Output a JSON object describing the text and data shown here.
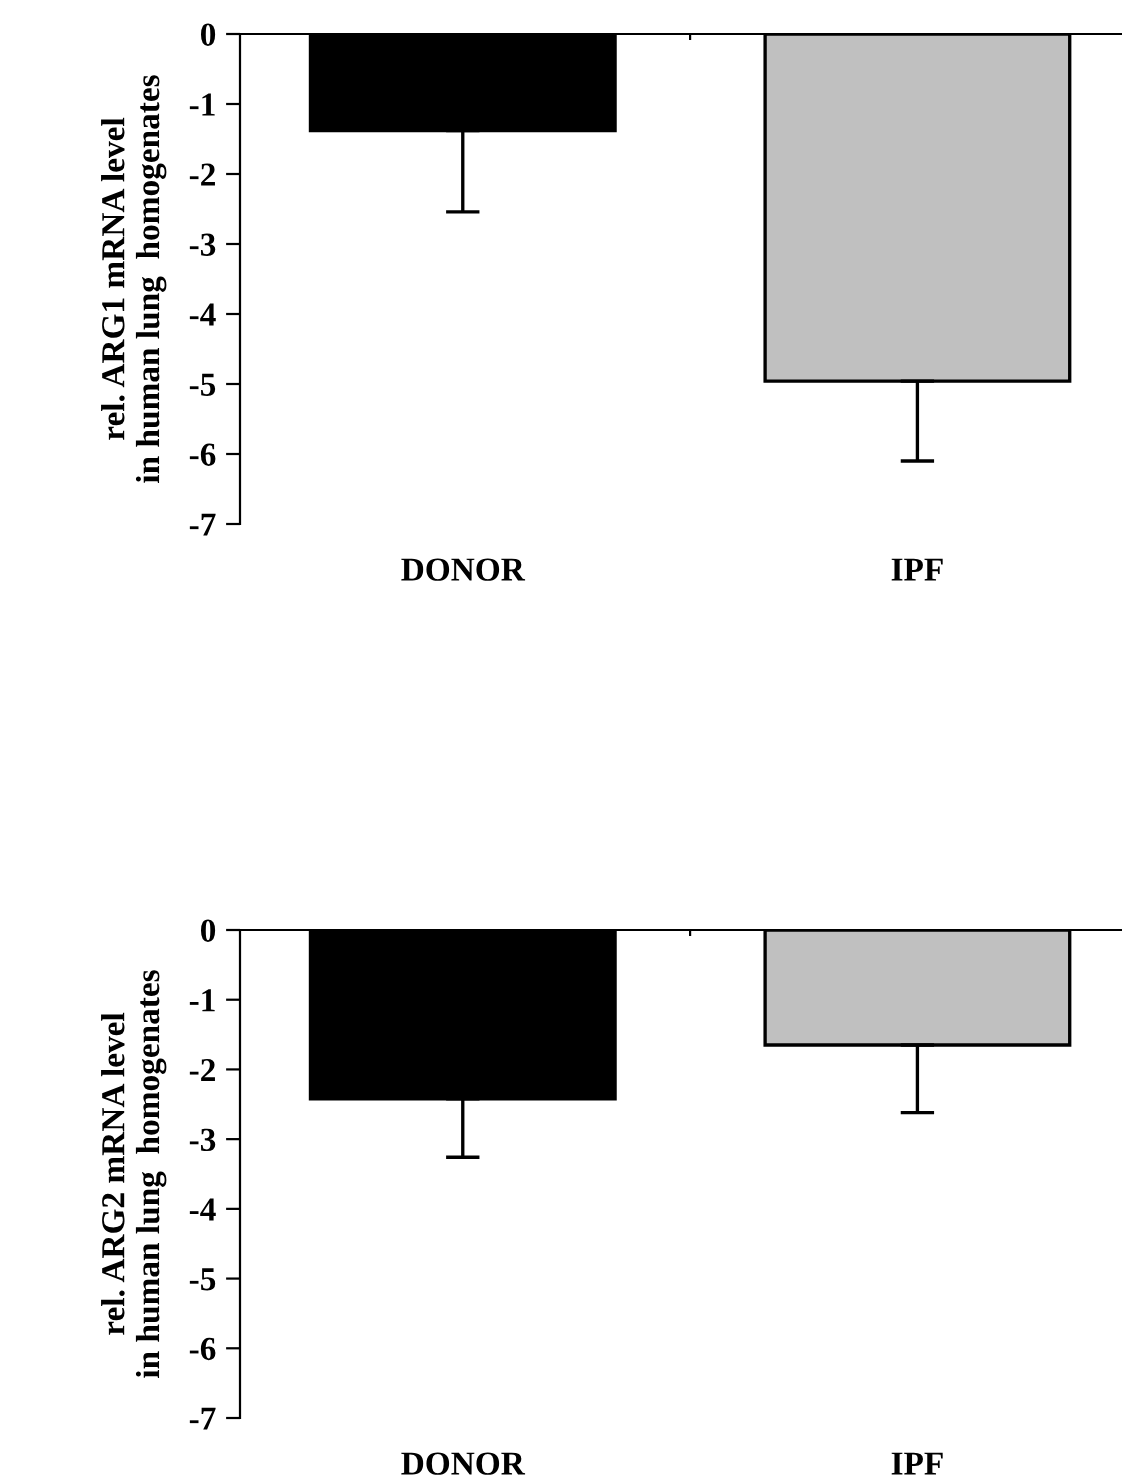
{
  "chart_data": [
    {
      "type": "bar",
      "ylabel": "rel. ARG1 mRNA level\nin human lung  homogenates",
      "categories": [
        "DONOR",
        "IPF"
      ],
      "values": [
        -1.38,
        -4.96
      ],
      "colors": [
        "#000000",
        "#c0c0c0"
      ],
      "errors": [
        [
          -2.54,
          -1.38
        ],
        [
          -6.1,
          -4.96
        ]
      ],
      "ylim": [
        -7,
        0
      ],
      "yticks": [
        -7,
        -6,
        -5,
        -4,
        -3,
        -2,
        -1,
        0
      ],
      "grid": false,
      "legend": false
    },
    {
      "type": "bar",
      "ylabel": "rel. ARG2 mRNA level\nin human lung  homogenates",
      "categories": [
        "DONOR",
        "IPF"
      ],
      "values": [
        -2.42,
        -1.65
      ],
      "colors": [
        "#000000",
        "#c0c0c0"
      ],
      "errors": [
        [
          -3.26,
          -2.42
        ],
        [
          -2.62,
          -1.65
        ]
      ],
      "ylim": [
        -7,
        0
      ],
      "yticks": [
        -7,
        -6,
        -5,
        -4,
        -3,
        -2,
        -1,
        0
      ],
      "grid": false,
      "legend": false
    }
  ]
}
